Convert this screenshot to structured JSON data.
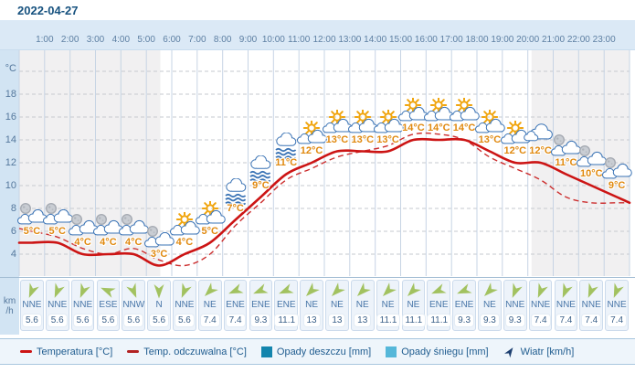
{
  "title": "2022-04-27",
  "y_axis": {
    "unit": "°C",
    "ticks": [
      "18",
      "16",
      "14",
      "12",
      "10",
      "8",
      "6",
      "4"
    ]
  },
  "time_axis": [
    "1:00",
    "2:00",
    "3:00",
    "4:00",
    "5:00",
    "6:00",
    "7:00",
    "8:00",
    "9:00",
    "10:00",
    "11:00",
    "12:00",
    "13:00",
    "14:00",
    "15:00",
    "16:00",
    "17:00",
    "18:00",
    "19:00",
    "20:00",
    "21:00",
    "22:00",
    "23:00"
  ],
  "chart_data": {
    "type": "line",
    "x_hours": [
      1,
      2,
      3,
      4,
      5,
      6,
      7,
      8,
      9,
      10,
      11,
      12,
      13,
      14,
      15,
      16,
      17,
      18,
      19,
      20,
      21,
      22,
      23,
      24
    ],
    "series": [
      {
        "name": "Temperatura [°C]",
        "style": "solid",
        "color": "#cc1414",
        "values": [
          5,
          5,
          4,
          4,
          4,
          3,
          4,
          5,
          7,
          9,
          11,
          12,
          13,
          13,
          13,
          14,
          14,
          14,
          13,
          12,
          12,
          11,
          10,
          9
        ]
      },
      {
        "name": "Temp. odczuwalna [°C]",
        "style": "dashed",
        "color": "#cc2e2e",
        "values": [
          6,
          5.5,
          4.5,
          4,
          4.5,
          3.5,
          3,
          4,
          6.5,
          8.5,
          10.5,
          11.5,
          12.5,
          13,
          13.5,
          14.5,
          14.5,
          14,
          12.5,
          11.5,
          10.5,
          9,
          8.5,
          8.5
        ]
      }
    ],
    "temperature_labels": [
      "5°C",
      "5°C",
      "4°C",
      "4°C",
      "4°C",
      "3°C",
      "4°C",
      "5°C",
      "7°C",
      "9°C",
      "11°C",
      "12°C",
      "13°C",
      "13°C",
      "13°C",
      "14°C",
      "14°C",
      "14°C",
      "13°C",
      "12°C",
      "12°C",
      "11°C",
      "10°C",
      "9°C"
    ],
    "icons": [
      "moon-clouds",
      "moon-clouds",
      "moon-clouds",
      "moon-clouds",
      "moon-clouds",
      "moon-clouds",
      "sun-clouds",
      "sun-clouds",
      "fog",
      "fog",
      "fog",
      "sun-clouds",
      "sun-clouds",
      "sun-clouds",
      "sun-clouds",
      "sun-clouds",
      "sun-clouds",
      "sun-clouds",
      "sun-clouds",
      "sun-clouds",
      "cloud",
      "moon-clouds",
      "moon-clouds",
      "moon-clouds"
    ],
    "ylim": [
      2,
      22
    ],
    "night_hours": [
      [
        0,
        5.55
      ],
      [
        20.15,
        24
      ]
    ],
    "grid": true,
    "legend_position": "bottom"
  },
  "wind": {
    "unit_top": "km",
    "unit_bottom": "/h",
    "directions": [
      "NNE",
      "NNE",
      "NNE",
      "ESE",
      "NNW",
      "N",
      "NNE",
      "NE",
      "ENE",
      "ENE",
      "ENE",
      "NE",
      "NE",
      "NE",
      "NE",
      "NE",
      "ENE",
      "ENE",
      "NE",
      "NNE",
      "NNE",
      "NNE",
      "NNE",
      "NNE"
    ],
    "speeds": [
      "5.6",
      "5.6",
      "5.6",
      "5.6",
      "5.6",
      "5.6",
      "5.6",
      "7.4",
      "7.4",
      "9.3",
      "11.1",
      "13",
      "13",
      "13",
      "11.1",
      "11.1",
      "11.1",
      "9.3",
      "9.3",
      "9.3",
      "7.4",
      "7.4",
      "7.4",
      "7.4"
    ]
  },
  "legend": {
    "items": [
      {
        "label": "Temperatura [°C]",
        "swatch": "line",
        "color": "#cc1414"
      },
      {
        "label": "Temp. odczuwalna [°C]",
        "swatch": "line",
        "color": "#b22222"
      },
      {
        "label": "Opady deszczu [mm]",
        "swatch": "square",
        "color": "#1385ad"
      },
      {
        "label": "Opady śniegu [mm]",
        "swatch": "square",
        "color": "#55b7d9"
      },
      {
        "label": "Wiatr [km/h]",
        "swatch": "arrow",
        "color": "#1d3f70"
      }
    ]
  },
  "colors": {
    "temp_label": "#e0890f",
    "night_shade": "#f1f0f1",
    "cloud_stroke": "#3a73b5",
    "sun": "#f0a50e",
    "moon": "#c9cdd3",
    "wind_arrow": "#a2c260"
  }
}
